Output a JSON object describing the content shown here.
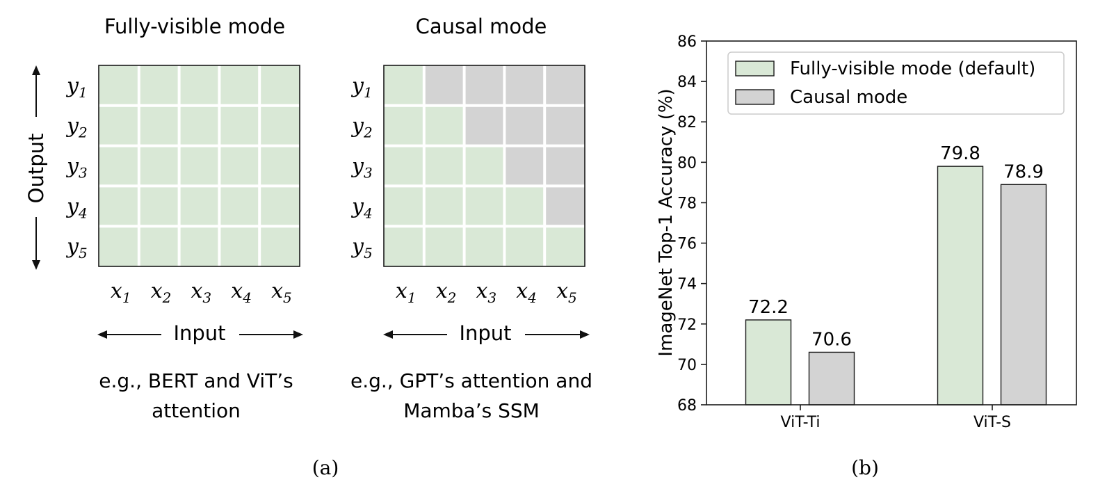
{
  "panel_a": {
    "caption": "(a)",
    "left": {
      "title": "Fully-visible mode",
      "rows": [
        "y1",
        "y2",
        "y3",
        "y4",
        "y5"
      ],
      "cols": [
        "x1",
        "x2",
        "x3",
        "x4",
        "x5"
      ],
      "axis_x": "Input",
      "axis_y": "Output",
      "desc_line1": "e.g., BERT and ViT’s",
      "desc_line2": "attention",
      "mask": "full"
    },
    "right": {
      "title": "Causal mode",
      "rows": [
        "y1",
        "y2",
        "y3",
        "y4",
        "y5"
      ],
      "cols": [
        "x1",
        "x2",
        "x3",
        "x4",
        "x5"
      ],
      "axis_x": "Input",
      "desc_line1": "e.g., GPT’s attention and",
      "desc_line2": "Mamba’s SSM",
      "mask": "causal"
    }
  },
  "panel_b": {
    "caption": "(b)"
  },
  "colors": {
    "visible": "#d9e8d6",
    "masked": "#d3d3d3",
    "grid_line": "#ffffff",
    "border": "#1a1a1a"
  },
  "chart_data": {
    "type": "bar",
    "categories": [
      "ViT-Ti",
      "ViT-S"
    ],
    "series": [
      {
        "name": "Fully-visible mode (default)",
        "values": [
          72.2,
          79.8
        ],
        "labels": [
          "72.2",
          "79.8"
        ],
        "color": "#d9e8d6"
      },
      {
        "name": "Causal mode",
        "values": [
          70.6,
          78.9
        ],
        "labels": [
          "70.6",
          "78.9"
        ],
        "color": "#d3d3d3"
      }
    ],
    "ylabel": "ImageNet Top-1 Accuracy (%)",
    "ylim": [
      68,
      86
    ],
    "yticks": [
      68,
      70,
      72,
      74,
      76,
      78,
      80,
      82,
      84,
      86
    ],
    "legend_position": "top-right",
    "grid": false
  }
}
